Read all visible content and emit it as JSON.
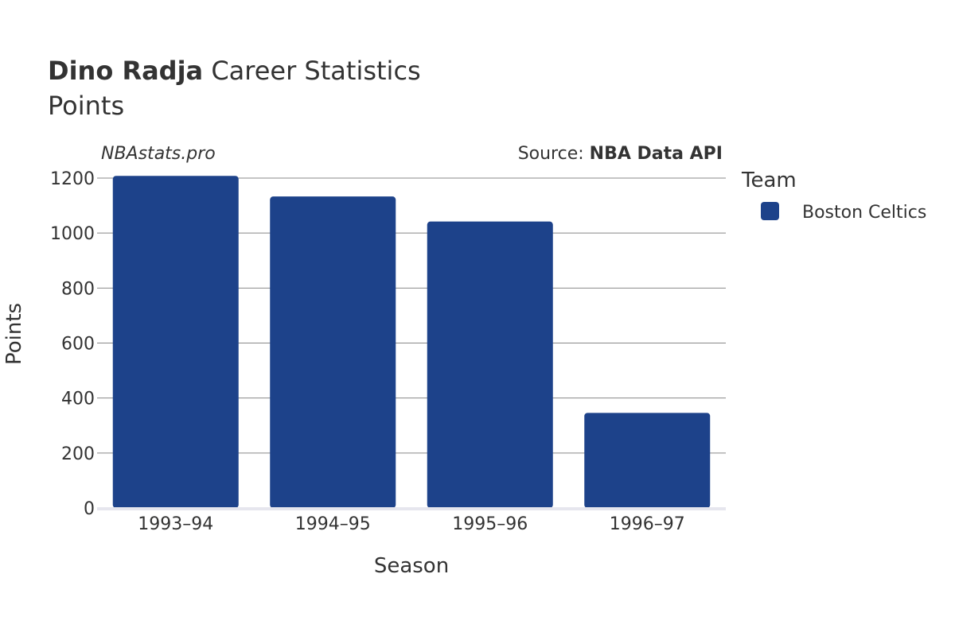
{
  "title": {
    "bold": "Dino Radja",
    "rest": " Career Statistics",
    "subtitle": "Points"
  },
  "credit": "NBAstats.pro",
  "source": {
    "prefix": "Source: ",
    "name": "NBA Data API"
  },
  "legend": {
    "title": "Team",
    "items": [
      {
        "label": "Boston Celtics",
        "color": "#1d428a"
      }
    ]
  },
  "chart_data": {
    "type": "bar",
    "categories": [
      "1993–94",
      "1994–95",
      "1995–96",
      "1996–97"
    ],
    "series": [
      {
        "name": "Boston Celtics",
        "values": [
          1208,
          1133,
          1042,
          346
        ],
        "color": "#1d428a"
      }
    ],
    "xlabel": "Season",
    "ylabel": "Points",
    "ylim": [
      0,
      1200
    ],
    "yticks": [
      0,
      200,
      400,
      600,
      800,
      1000,
      1200
    ],
    "grid": true,
    "legend_position": "right"
  }
}
